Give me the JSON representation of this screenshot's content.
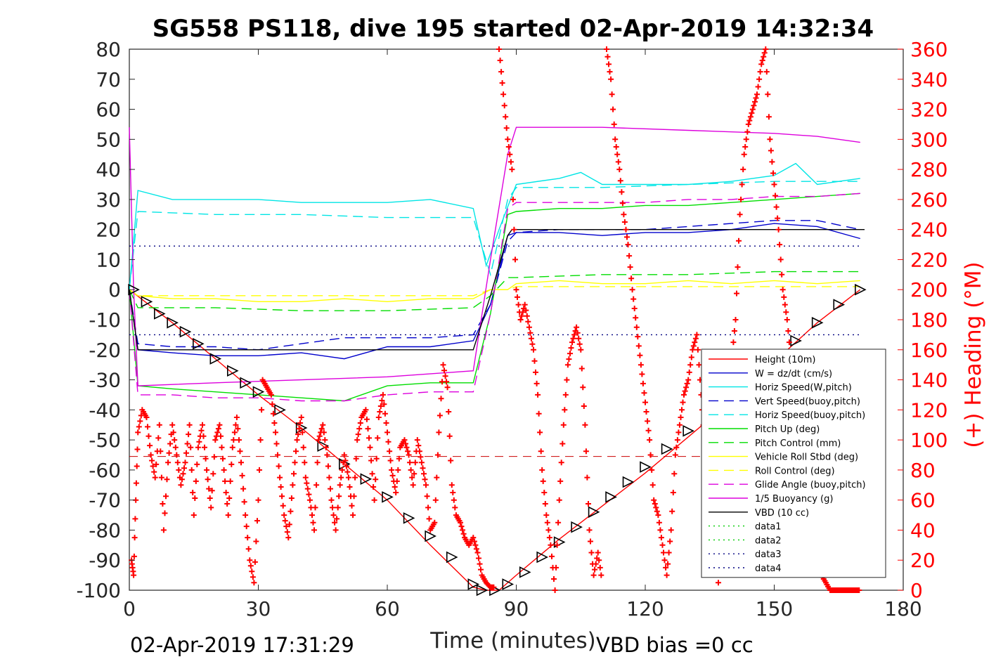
{
  "chart_data": {
    "type": "line",
    "title": "SG558 PS118, dive 195 started 02-Apr-2019 14:32:34",
    "xlabel": "Time (minutes)",
    "ylabel_right": "(+) Heading (°M)",
    "xlim": [
      0,
      180
    ],
    "ylim": [
      -100,
      80
    ],
    "ylim_right": [
      0,
      360
    ],
    "xticks": [
      "0",
      "30",
      "60",
      "90",
      "120",
      "150",
      "180"
    ],
    "yticks": [
      "80",
      "70",
      "60",
      "50",
      "40",
      "30",
      "20",
      "10",
      "0",
      "-10",
      "-20",
      "-30",
      "-40",
      "-50",
      "-60",
      "-70",
      "-80",
      "-90",
      "-100"
    ],
    "yticks_right": [
      "360",
      "340",
      "320",
      "300",
      "280",
      "260",
      "240",
      "220",
      "200",
      "180",
      "160",
      "140",
      "120",
      "100",
      "80",
      "60",
      "40",
      "20",
      "0"
    ],
    "grid": false,
    "legend_position": "bottom-right",
    "footer_left": "02-Apr-2019 17:31:29",
    "footer_right": "VBD bias =0 cc",
    "series": [
      {
        "name": "Height (10m)",
        "color": "#ff0000",
        "style": "solid",
        "x": [
          0,
          10,
          20,
          30,
          40,
          50,
          60,
          70,
          80,
          83,
          86,
          90,
          100,
          110,
          120,
          130,
          140,
          150,
          160,
          170
        ],
        "y": [
          0,
          -11,
          -23,
          -35,
          -46,
          -58,
          -70,
          -85,
          -99,
          -100,
          -100,
          -95,
          -83,
          -72,
          -61,
          -49,
          -37,
          -24,
          -11,
          0
        ]
      },
      {
        "name": "W = dz/dt (cm/s)",
        "color": "#0000cc",
        "style": "solid",
        "x": [
          0,
          2,
          10,
          20,
          30,
          40,
          50,
          60,
          70,
          80,
          84,
          88,
          90,
          100,
          110,
          120,
          130,
          140,
          150,
          160,
          170
        ],
        "y": [
          0,
          -20,
          -21,
          -22,
          -22,
          -21,
          -23,
          -19,
          -19,
          -17,
          -5,
          18,
          19,
          19,
          18,
          19,
          19,
          20,
          22,
          21,
          17
        ]
      },
      {
        "name": "Horiz Speed(W,pitch)",
        "color": "#00e5e5",
        "style": "solid",
        "x": [
          0,
          2,
          10,
          20,
          30,
          40,
          50,
          60,
          70,
          80,
          83,
          86,
          90,
          100,
          105,
          110,
          120,
          130,
          140,
          150,
          155,
          160,
          170
        ],
        "y": [
          0,
          33,
          30,
          30,
          30,
          29,
          29,
          29,
          30,
          27,
          8,
          20,
          35,
          37,
          39,
          35,
          35,
          35,
          36,
          38,
          42,
          35,
          37
        ]
      },
      {
        "name": "Vert Speed(buoy,pitch)",
        "color": "#0000cc",
        "style": "dashed",
        "x": [
          0,
          2,
          10,
          20,
          30,
          40,
          50,
          60,
          70,
          80,
          84,
          88,
          90,
          100,
          110,
          120,
          130,
          140,
          150,
          160,
          170
        ],
        "y": [
          0,
          -18,
          -19,
          -19,
          -20,
          -18,
          -16,
          -16,
          -16,
          -15,
          -5,
          16,
          19,
          20,
          20,
          20,
          21,
          22,
          23,
          23,
          20
        ]
      },
      {
        "name": "Horiz Speed(buoy,pitch)",
        "color": "#00e5e5",
        "style": "dashed",
        "x": [
          0,
          2,
          20,
          40,
          60,
          80,
          84,
          88,
          90,
          110,
          130,
          150,
          170
        ],
        "y": [
          0,
          26,
          25,
          25,
          24,
          24,
          5,
          30,
          34,
          34,
          35,
          36,
          36
        ]
      },
      {
        "name": "Pitch Up (deg)",
        "color": "#00dd00",
        "style": "solid",
        "x": [
          0,
          2,
          10,
          20,
          30,
          40,
          50,
          60,
          70,
          80,
          84,
          88,
          90,
          100,
          110,
          120,
          130,
          140,
          150,
          160,
          170
        ],
        "y": [
          0,
          -32,
          -33,
          -34,
          -35,
          -36,
          -37,
          -32,
          -31,
          -31,
          -8,
          25,
          26,
          27,
          27,
          28,
          28,
          29,
          30,
          31,
          32
        ]
      },
      {
        "name": "Pitch Control (mm)",
        "color": "#00dd00",
        "style": "dashed",
        "x": [
          0,
          2,
          20,
          40,
          60,
          80,
          84,
          88,
          90,
          110,
          130,
          150,
          170
        ],
        "y": [
          0,
          -6,
          -6,
          -7,
          -7,
          -6,
          -2,
          4,
          4,
          5,
          5,
          6,
          6
        ]
      },
      {
        "name": "Vehicle Roll Stbd (deg)",
        "color": "#ffff00",
        "style": "solid",
        "x": [
          0,
          2,
          10,
          20,
          30,
          40,
          50,
          60,
          70,
          80,
          84,
          88,
          90,
          100,
          110,
          120,
          130,
          140,
          150,
          160,
          170
        ],
        "y": [
          0,
          -2,
          -3,
          -3,
          -4,
          -4,
          -3,
          -4,
          -3,
          -3,
          0,
          0,
          2,
          3,
          2,
          2,
          3,
          2,
          3,
          2,
          3
        ]
      },
      {
        "name": "Roll Control (deg)",
        "color": "#ffff00",
        "style": "dashed",
        "x": [
          0,
          2,
          20,
          40,
          60,
          80,
          84,
          88,
          90,
          110,
          130,
          150,
          170
        ],
        "y": [
          0,
          -2,
          -2,
          -2,
          -2,
          -2,
          0,
          0,
          1,
          1,
          1,
          1,
          1
        ]
      },
      {
        "name": "Glide Angle (buoy,pitch)",
        "color": "#dd00dd",
        "style": "dashed",
        "x": [
          0,
          2,
          10,
          20,
          30,
          40,
          50,
          60,
          70,
          80,
          84,
          88,
          90,
          100,
          110,
          120,
          130,
          140,
          150,
          160,
          170
        ],
        "y": [
          0,
          -35,
          -35,
          -36,
          -36,
          -37,
          -37,
          -35,
          -34,
          -34,
          -8,
          27,
          29,
          29,
          29,
          29,
          30,
          30,
          31,
          31,
          32
        ]
      },
      {
        "name": "1/5 Buoyancy (g)",
        "color": "#dd00dd",
        "style": "solid",
        "x": [
          0,
          1,
          2,
          20,
          40,
          60,
          80,
          84,
          88,
          90,
          110,
          130,
          150,
          160,
          165,
          170
        ],
        "y": [
          54,
          0,
          -32,
          -31,
          -30,
          -29,
          -27,
          10,
          45,
          54,
          54,
          53,
          52,
          51,
          50,
          49
        ]
      },
      {
        "name": "VBD (10 cc)",
        "color": "#000000",
        "style": "solid",
        "x": [
          0,
          2,
          80,
          84,
          88,
          89,
          170,
          171
        ],
        "y": [
          0,
          -20,
          -20,
          -2,
          18,
          20,
          20,
          20
        ]
      },
      {
        "name": "data1",
        "color": "#00cc00",
        "style": "dotted",
        "x": [],
        "y": []
      },
      {
        "name": "data2",
        "color": "#00cc00",
        "style": "dotted",
        "x": [],
        "y": []
      },
      {
        "name": "data3",
        "color": "#000080",
        "style": "dotted",
        "x": [
          0,
          170
        ],
        "y": [
          -15,
          -15
        ]
      },
      {
        "name": "data4",
        "color": "#000080",
        "style": "dotted",
        "x": [
          0,
          170
        ],
        "y": [
          14.5,
          14.5
        ]
      }
    ],
    "reference_line": {
      "color": "#cc0000",
      "style": "dashed",
      "y": -55.5,
      "x": [
        0,
        170
      ]
    },
    "markers": {
      "color": "#000000",
      "x": [
        1,
        4,
        7,
        10,
        13,
        16,
        20,
        24,
        27,
        30,
        35,
        40,
        45,
        50,
        55,
        60,
        65,
        70,
        75,
        80,
        82,
        85,
        88,
        92,
        96,
        100,
        104,
        108,
        112,
        116,
        120,
        125,
        130,
        135,
        140,
        145,
        150,
        155,
        160,
        165,
        170
      ],
      "y": [
        0,
        -4,
        -8,
        -11,
        -14,
        -18,
        -23,
        -27,
        -31,
        -34,
        -40,
        -46,
        -52,
        -58,
        -63,
        -69,
        -76,
        -82,
        -89,
        -98,
        -100,
        -100,
        -98,
        -94,
        -89,
        -84,
        -79,
        -74,
        -69,
        -64,
        -59,
        -53,
        -47,
        -41,
        -35,
        -29,
        -23,
        -17,
        -11,
        -5,
        0
      ]
    },
    "heading": {
      "name": "Heading",
      "color": "#ff0000",
      "marker": "+",
      "axis": "right",
      "x": [
        0,
        0.5,
        1,
        1.5,
        2,
        3,
        4,
        5,
        6,
        7,
        8,
        9,
        10,
        11,
        12,
        13,
        14,
        15,
        16,
        17,
        18,
        19,
        20,
        21,
        22,
        23,
        24,
        25,
        26,
        27,
        28,
        29,
        30,
        31,
        32,
        33,
        34,
        35,
        36,
        37,
        38,
        39,
        40,
        41,
        42,
        43,
        44,
        45,
        46,
        47,
        48,
        49,
        50,
        51,
        52,
        53,
        54,
        55,
        56,
        57,
        58,
        59,
        60,
        61,
        62,
        63,
        64,
        65,
        66,
        67,
        68,
        69,
        70,
        71,
        72,
        73,
        74,
        75,
        76,
        77,
        78,
        79,
        80,
        81,
        82,
        83,
        84,
        85,
        86,
        87,
        88,
        89,
        90,
        91,
        92,
        93,
        94,
        95,
        96,
        97,
        98,
        99,
        100,
        101,
        102,
        103,
        104,
        105,
        106,
        107,
        108,
        109,
        110,
        111,
        112,
        113,
        114,
        115,
        116,
        117,
        118,
        119,
        120,
        121,
        122,
        123,
        124,
        125,
        126,
        127,
        128,
        129,
        130,
        131,
        132,
        133,
        134,
        135,
        136,
        137,
        138,
        139,
        140,
        141,
        142,
        143,
        144,
        145,
        146,
        147,
        148,
        149,
        150,
        151,
        152,
        153,
        154,
        155,
        156,
        157,
        158,
        159,
        160,
        161,
        162,
        163,
        164,
        165,
        166,
        167,
        168,
        169,
        170
      ],
      "y": [
        355,
        20,
        10,
        60,
        105,
        120,
        115,
        90,
        75,
        110,
        40,
        85,
        110,
        90,
        70,
        85,
        110,
        50,
        95,
        110,
        80,
        55,
        100,
        110,
        80,
        50,
        95,
        115,
        85,
        50,
        20,
        5,
        60,
        140,
        135,
        130,
        105,
        75,
        50,
        35,
        70,
        100,
        115,
        75,
        60,
        40,
        100,
        110,
        90,
        60,
        40,
        70,
        90,
        75,
        50,
        100,
        115,
        120,
        95,
        60,
        115,
        130,
        105,
        80,
        65,
        95,
        100,
        90,
        70,
        100,
        85,
        70,
        40,
        45,
        105,
        150,
        135,
        70,
        50,
        45,
        35,
        30,
        35,
        25,
        10,
        5,
        2,
        2,
        360,
        330,
        300,
        280,
        200,
        180,
        190,
        175,
        160,
        130,
        80,
        50,
        30,
        0,
        60,
        110,
        150,
        165,
        175,
        160,
        110,
        40,
        10,
        25,
        5,
        360,
        340,
        300,
        280,
        250,
        230,
        200,
        175,
        150,
        125,
        100,
        60,
        50,
        30,
        10,
        40,
        90,
        110,
        130,
        140,
        160,
        170,
        130,
        90,
        60,
        30,
        5,
        80,
        120,
        150,
        180,
        250,
        290,
        310,
        320,
        330,
        350,
        360,
        300,
        270,
        240,
        200,
        180,
        150,
        120,
        90,
        70,
        50,
        30,
        20,
        10,
        5,
        0,
        0,
        0,
        0,
        0,
        0,
        0,
        0
      ]
    }
  }
}
